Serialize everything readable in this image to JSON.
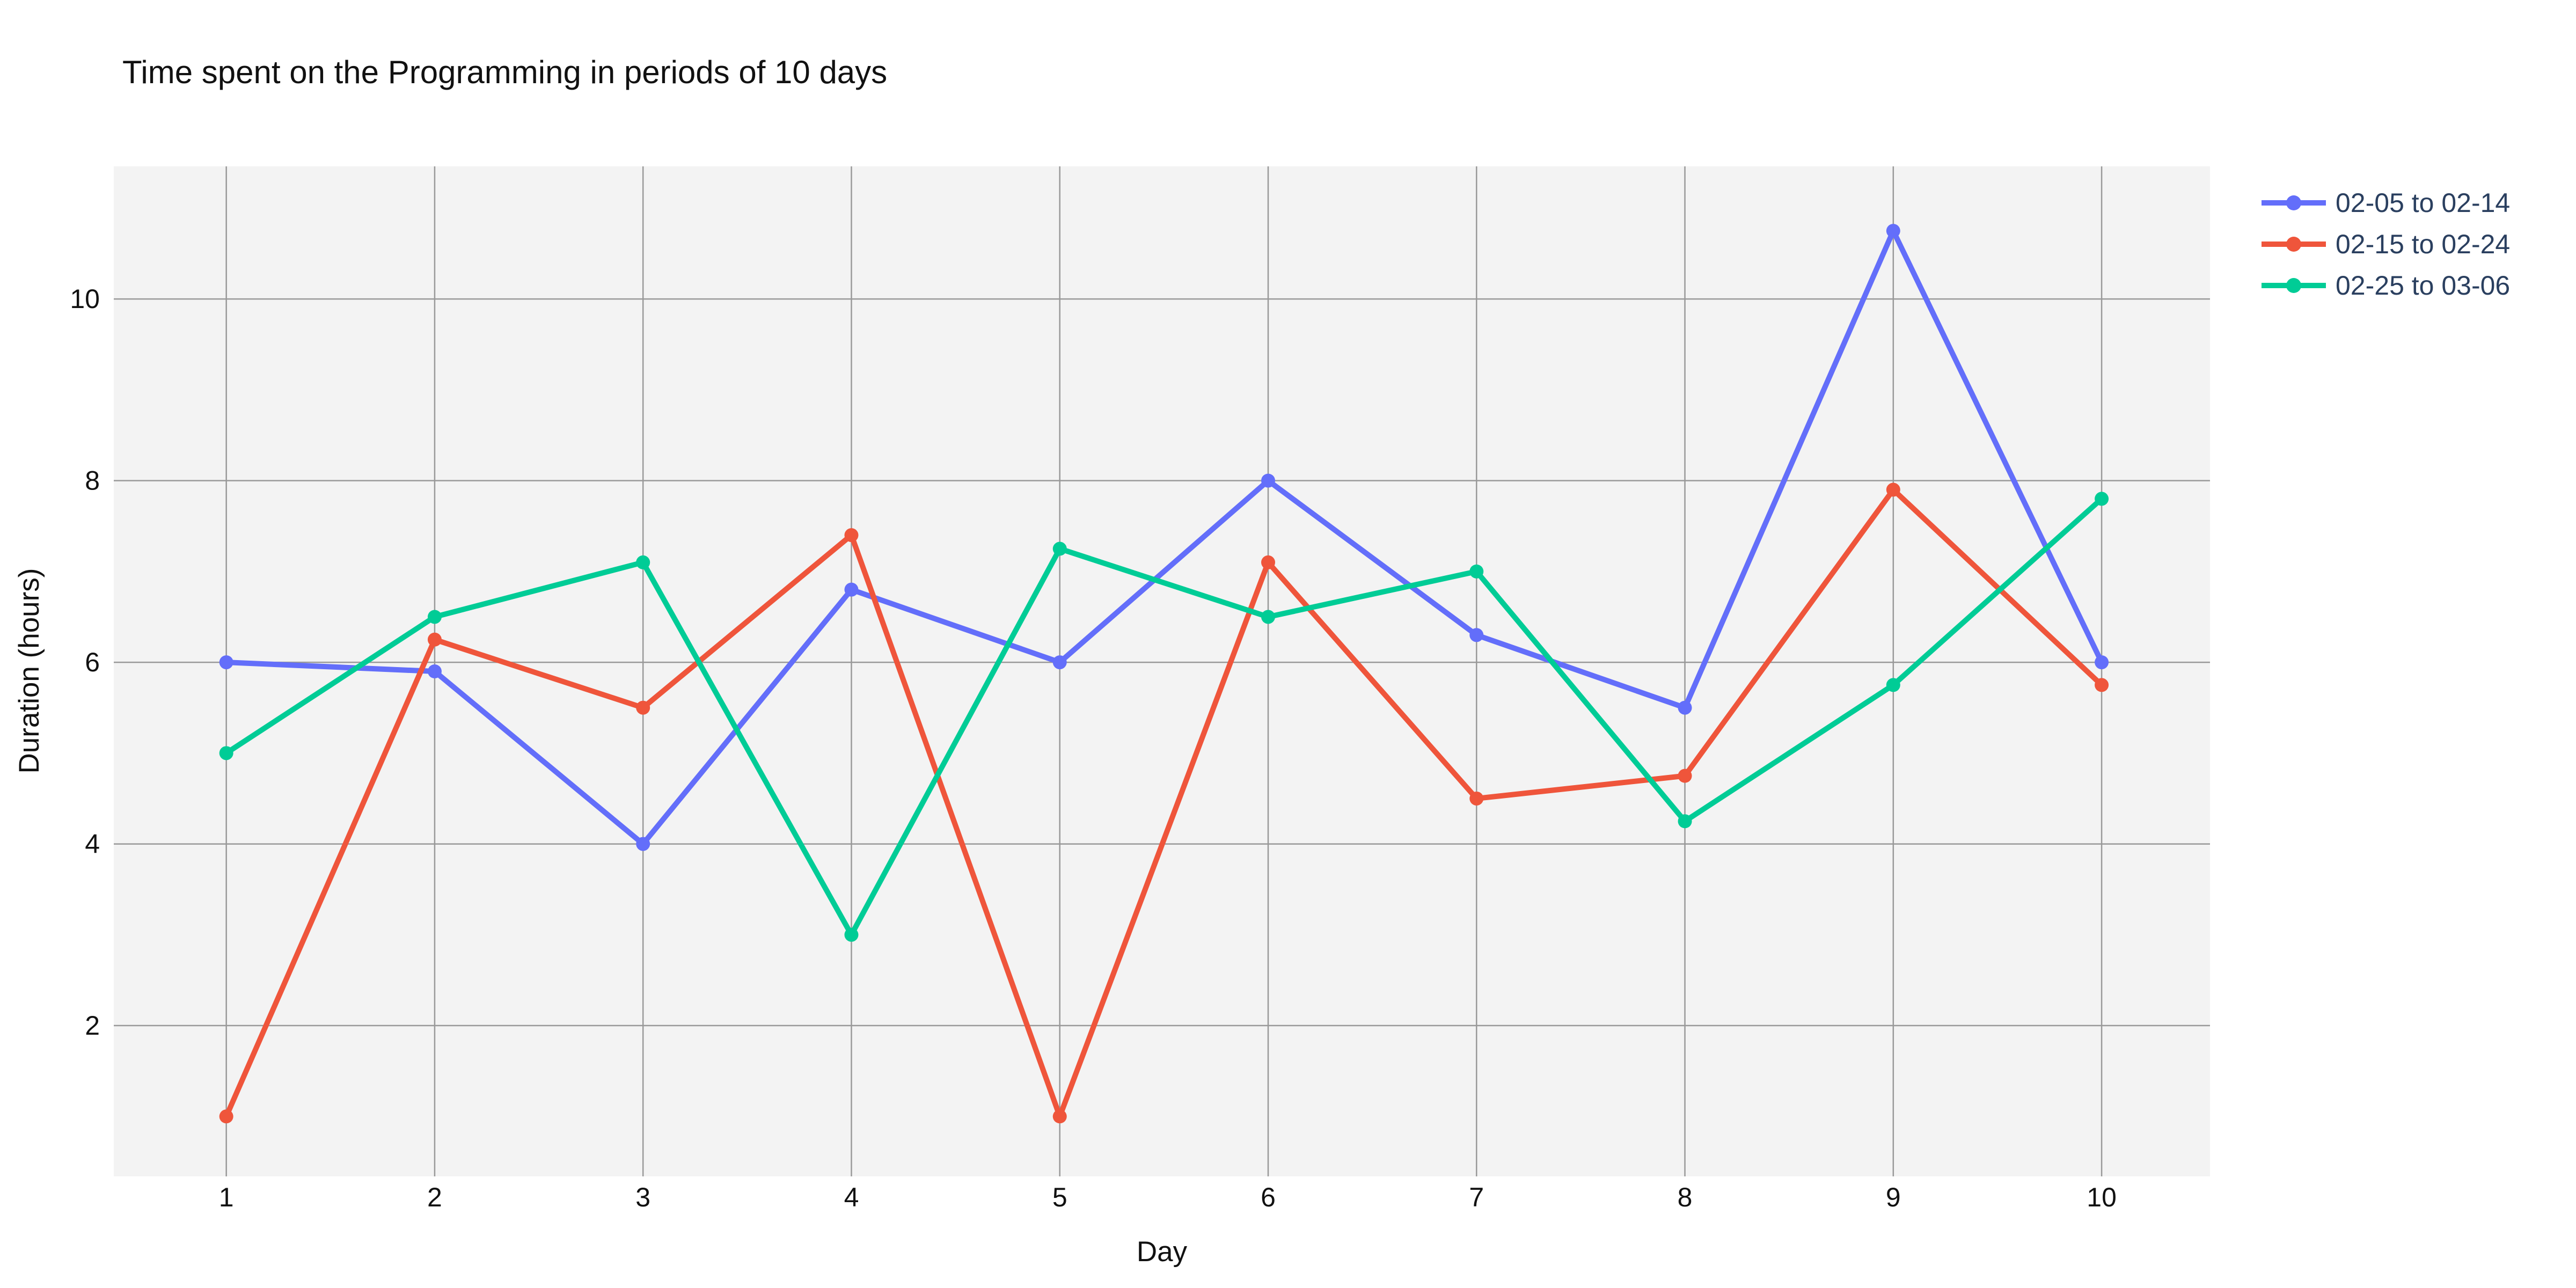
{
  "chart_data": {
    "type": "line",
    "title": "Time spent on the Programming in periods of 10 days",
    "xlabel": "Day",
    "ylabel": "Duration (hours)",
    "x": [
      1,
      2,
      3,
      4,
      5,
      6,
      7,
      8,
      9,
      10
    ],
    "xticklabels": [
      "1",
      "2",
      "3",
      "4",
      "5",
      "6",
      "7",
      "8",
      "9",
      "10"
    ],
    "yticks": [
      2,
      4,
      6,
      8,
      10
    ],
    "yticklabels": [
      "2",
      "4",
      "6",
      "8",
      "10"
    ],
    "xlim": [
      0.46,
      10.52
    ],
    "ylim": [
      0.34,
      11.46
    ],
    "grid": true,
    "legend_position": "outside-top-right",
    "series": [
      {
        "name": "02-05 to 02-14",
        "color": "#636EFA",
        "values": [
          6.0,
          5.9,
          4.0,
          6.8,
          6.0,
          8.0,
          6.3,
          5.5,
          10.75,
          6.0
        ]
      },
      {
        "name": "02-15 to 02-24",
        "color": "#EF553B",
        "values": [
          1.0,
          6.25,
          5.5,
          7.4,
          1.0,
          7.1,
          4.5,
          4.75,
          7.9,
          5.75
        ]
      },
      {
        "name": "02-25 to 03-06",
        "color": "#00CC96",
        "values": [
          5.0,
          6.5,
          7.1,
          3.0,
          7.25,
          6.5,
          7.0,
          4.25,
          5.75,
          7.8
        ]
      }
    ],
    "colors": {
      "plot_background": "#f3f3f3",
      "page_background": "#ffffff",
      "gridline": "#999999",
      "axis_text": "#111111",
      "legend_text": "#2a3f5f"
    }
  }
}
